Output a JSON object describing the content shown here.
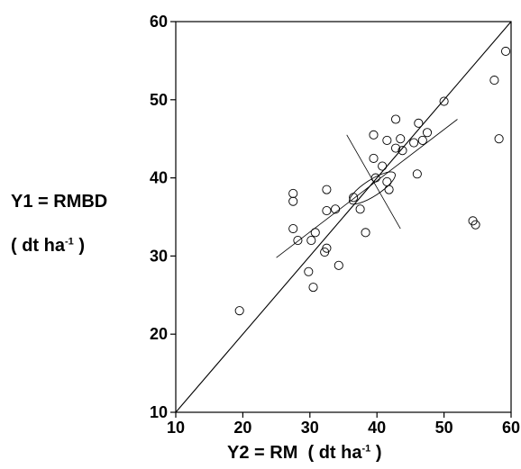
{
  "chart_data": {
    "type": "scatter",
    "title": "",
    "xlabel": {
      "main": "Y2 = RM",
      "unit_open": "( dt ha",
      "unit_sup": "-1",
      "unit_close": " )"
    },
    "ylabel": {
      "line1": "Y1 = RMBD",
      "unit_open": "( dt ha",
      "unit_sup": "-1",
      "unit_close": " )"
    },
    "xlim": [
      10,
      60
    ],
    "ylim": [
      10,
      60
    ],
    "xticks": [
      "10",
      "20",
      "30",
      "40",
      "50",
      "60"
    ],
    "yticks": [
      "10",
      "20",
      "30",
      "40",
      "50",
      "60"
    ],
    "grid": false,
    "marker": "open-circle",
    "points": [
      {
        "x": 19.5,
        "y": 23.0
      },
      {
        "x": 27.5,
        "y": 38.0
      },
      {
        "x": 27.5,
        "y": 37.0
      },
      {
        "x": 27.5,
        "y": 33.5
      },
      {
        "x": 28.2,
        "y": 32.0
      },
      {
        "x": 29.8,
        "y": 28.0
      },
      {
        "x": 30.5,
        "y": 26.0
      },
      {
        "x": 30.2,
        "y": 32.0
      },
      {
        "x": 30.8,
        "y": 33.0
      },
      {
        "x": 32.2,
        "y": 30.5
      },
      {
        "x": 32.5,
        "y": 31.0
      },
      {
        "x": 32.5,
        "y": 35.8
      },
      {
        "x": 33.8,
        "y": 36.0
      },
      {
        "x": 32.5,
        "y": 38.5
      },
      {
        "x": 34.3,
        "y": 28.8
      },
      {
        "x": 36.5,
        "y": 37.5
      },
      {
        "x": 37.5,
        "y": 36.0
      },
      {
        "x": 38.3,
        "y": 33.0
      },
      {
        "x": 39.5,
        "y": 45.5
      },
      {
        "x": 39.5,
        "y": 42.5
      },
      {
        "x": 39.8,
        "y": 40.0
      },
      {
        "x": 40.8,
        "y": 41.5
      },
      {
        "x": 41.5,
        "y": 39.5
      },
      {
        "x": 41.8,
        "y": 38.5
      },
      {
        "x": 41.5,
        "y": 44.8
      },
      {
        "x": 42.8,
        "y": 47.5
      },
      {
        "x": 42.8,
        "y": 43.8
      },
      {
        "x": 43.5,
        "y": 45.0
      },
      {
        "x": 43.8,
        "y": 43.5
      },
      {
        "x": 45.5,
        "y": 44.5
      },
      {
        "x": 46.2,
        "y": 47.0
      },
      {
        "x": 46.8,
        "y": 44.8
      },
      {
        "x": 47.5,
        "y": 45.8
      },
      {
        "x": 46.0,
        "y": 40.5
      },
      {
        "x": 50.0,
        "y": 49.8
      },
      {
        "x": 54.3,
        "y": 34.5
      },
      {
        "x": 54.7,
        "y": 34.0
      },
      {
        "x": 57.5,
        "y": 52.5
      },
      {
        "x": 58.2,
        "y": 45.0
      },
      {
        "x": 59.2,
        "y": 56.2
      }
    ],
    "lines": [
      {
        "name": "1:1",
        "x": [
          10,
          60
        ],
        "y": [
          10,
          60
        ]
      },
      {
        "name": "major axis",
        "x": [
          25,
          52
        ],
        "y": [
          29.8,
          47.5
        ]
      },
      {
        "name": "minor axis",
        "x": [
          35.5,
          43.5
        ],
        "y": [
          45.5,
          33.5
        ]
      }
    ],
    "ellipse": {
      "cx": 39.3,
      "cy": 38.7,
      "rx_data": 4.0,
      "ry_data": 1.2,
      "angle_deg": -33
    }
  }
}
